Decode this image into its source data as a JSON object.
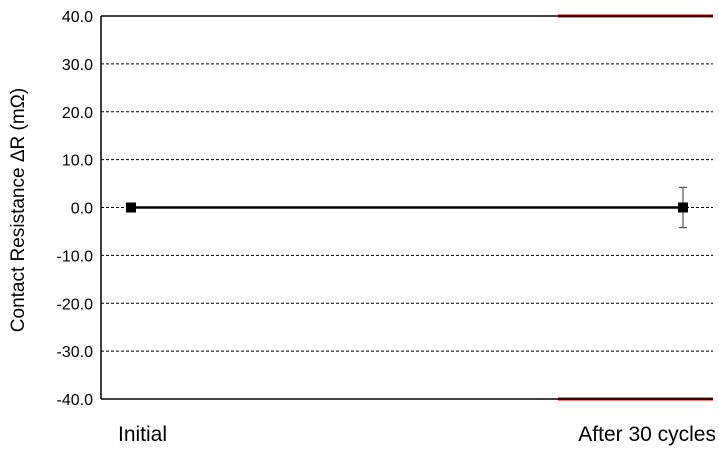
{
  "chart_data": {
    "type": "line",
    "title": "",
    "xlabel": "",
    "ylabel": "Contact Resistance ΔR (mΩ)",
    "categories": [
      "Initial",
      "After 30 cycles"
    ],
    "ylim": [
      -40.0,
      40.0
    ],
    "yticks": [
      "40.0",
      "30.0",
      "20.0",
      "10.0",
      "0.0",
      "-10.0",
      "-20.0",
      "-30.0",
      "-40.0"
    ],
    "ytick_values": [
      40,
      30,
      20,
      10,
      0,
      -10,
      -20,
      -30,
      -40
    ],
    "grid": "horizontal dashed",
    "legend": "none",
    "series": [
      {
        "values": [
          0.0,
          0.0
        ],
        "error": [
          0.0,
          4.2
        ],
        "color": "#000000",
        "marker": "square"
      }
    ],
    "limit_lines": [
      {
        "y": 40.0,
        "color": "#e00000",
        "from_category": 1
      },
      {
        "y": -40.0,
        "color": "#e00000",
        "from_category": 1
      }
    ]
  }
}
